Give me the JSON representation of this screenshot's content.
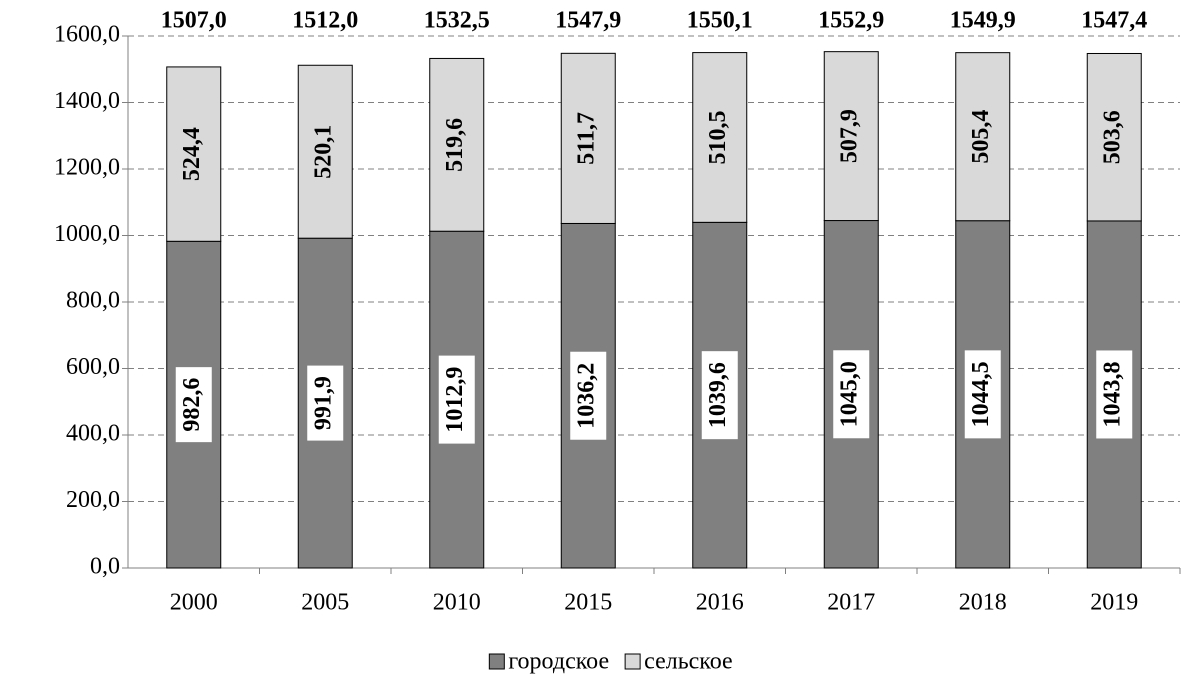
{
  "chart_data": {
    "type": "stacked_bar",
    "categories": [
      "2000",
      "2005",
      "2010",
      "2015",
      "2016",
      "2017",
      "2018",
      "2019"
    ],
    "series": [
      {
        "name": "городское",
        "color": "#808080",
        "values": [
          982.6,
          991.9,
          1012.9,
          1036.2,
          1039.6,
          1045.0,
          1044.5,
          1043.8
        ],
        "value_labels": [
          "982,6",
          "991,9",
          "1012,9",
          "1036,2",
          "1039,6",
          "1045,0",
          "1044,5",
          "1043,8"
        ]
      },
      {
        "name": "сельское",
        "color": "#d9d9d9",
        "values": [
          524.4,
          520.1,
          519.6,
          511.7,
          510.5,
          507.9,
          505.4,
          503.6
        ],
        "value_labels": [
          "524,4",
          "520,1",
          "519,6",
          "511,7",
          "510,5",
          "507,9",
          "505,4",
          "503,6"
        ]
      }
    ],
    "total_labels": [
      "1507,0",
      "1512,0",
      "1532,5",
      "1547,9",
      "1550,1",
      "1552,9",
      "1549,9",
      "1547,4"
    ],
    "ylim": [
      0,
      1600
    ],
    "yticks": [
      {
        "value": 0,
        "label": "0,0"
      },
      {
        "value": 200,
        "label": "200,0"
      },
      {
        "value": 400,
        "label": "400,0"
      },
      {
        "value": 600,
        "label": "600,0"
      },
      {
        "value": 800,
        "label": "800,0"
      },
      {
        "value": 1000,
        "label": "1000,0"
      },
      {
        "value": 1200,
        "label": "1200,0"
      },
      {
        "value": 1400,
        "label": "1400,0"
      },
      {
        "value": 1600,
        "label": "1600,0"
      }
    ],
    "grid": true,
    "legend": "bottom"
  }
}
